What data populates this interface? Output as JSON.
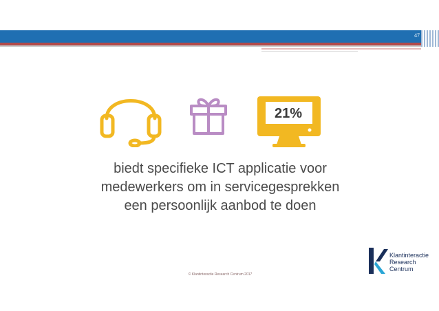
{
  "header": {
    "page_number": "47"
  },
  "icons": {
    "headset": "headset-icon",
    "gift": "gift-icon",
    "monitor": "monitor-icon"
  },
  "stat": {
    "value": "21%",
    "lines": [
      "biedt specifieke ICT applicatie voor",
      "medewerkers om in servicegesprekken",
      "een persoonlijk aanbod te doen"
    ]
  },
  "footer": {
    "copyright": "© Klantinteractie Research Centrum 2017"
  },
  "logo": {
    "lines": [
      "Klantinteractie",
      "Research",
      "Centrum"
    ]
  },
  "colors": {
    "header_blue": "#1f6fb2",
    "header_red": "#b24a4a",
    "headset": "#f2b822",
    "gift": "#b98cc4",
    "monitor": "#f2b822",
    "logo_navy": "#1a2f5a",
    "logo_cyan": "#2aa6d6"
  }
}
